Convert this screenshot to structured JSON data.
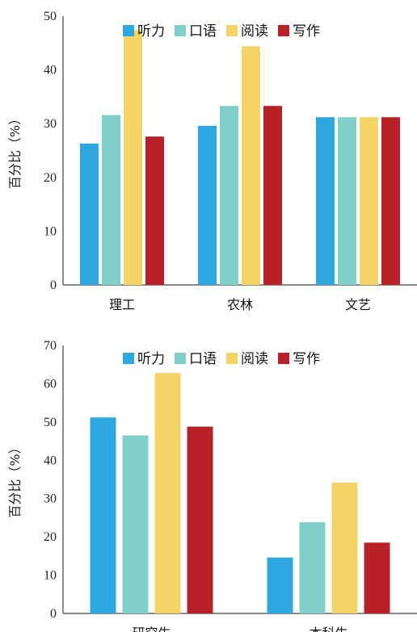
{
  "legend": [
    "听力",
    "口语",
    "阅读",
    "写作"
  ],
  "colors": {
    "听力": "#2ea7e0",
    "口语": "#80cfc9",
    "阅读": "#f5d467",
    "写作": "#b82127"
  },
  "chart_data": [
    {
      "type": "bar",
      "title": "",
      "xlabel": "",
      "ylabel": "百分比（%）",
      "ylim": [
        0,
        50
      ],
      "yticks": [
        0,
        10,
        20,
        30,
        40,
        50
      ],
      "grid": false,
      "legend_position": "top",
      "categories": [
        "理工",
        "农林",
        "文艺"
      ],
      "series": [
        {
          "name": "听力",
          "values": [
            26.3,
            29.6,
            31.2
          ]
        },
        {
          "name": "口语",
          "values": [
            31.6,
            33.3,
            31.2
          ]
        },
        {
          "name": "阅读",
          "values": [
            47.4,
            44.4,
            31.2
          ]
        },
        {
          "name": "写作",
          "values": [
            27.6,
            33.3,
            31.2
          ]
        }
      ]
    },
    {
      "type": "bar",
      "title": "",
      "xlabel": "",
      "ylabel": "百分比（%）",
      "ylim": [
        0,
        70
      ],
      "yticks": [
        0,
        10,
        20,
        30,
        40,
        50,
        60,
        70
      ],
      "grid": false,
      "legend_position": "top",
      "categories": [
        "研究生",
        "本科生"
      ],
      "series": [
        {
          "name": "听力",
          "values": [
            51.2,
            14.6
          ]
        },
        {
          "name": "口语",
          "values": [
            46.5,
            23.8
          ]
        },
        {
          "name": "阅读",
          "values": [
            62.8,
            34.2
          ]
        },
        {
          "name": "写作",
          "values": [
            48.8,
            18.5
          ]
        }
      ]
    }
  ]
}
